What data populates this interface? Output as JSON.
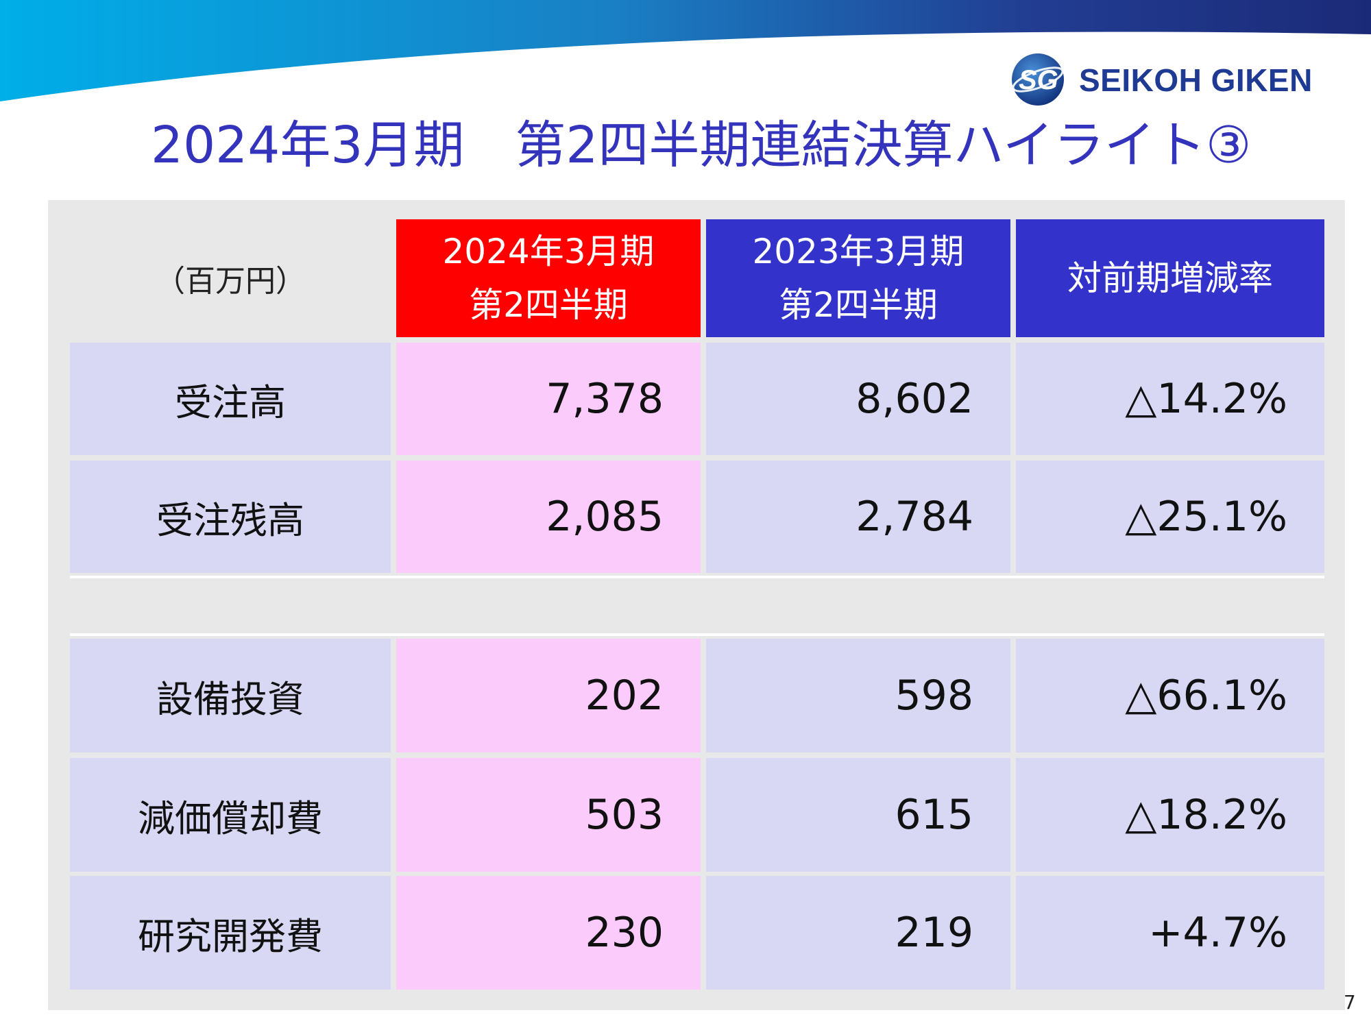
{
  "slide": {
    "title": "2024年3月期　第2四半期連結決算ハイライト③",
    "page_number": "7",
    "colors": {
      "accent_blue": "#3333cc",
      "current_header": "#ff0000",
      "current_cells": "#fbcbfb",
      "other_cells": "#d8d8f4",
      "panel_bg": "#e8e8e8"
    }
  },
  "logo": {
    "text": "SEIKOH GIKEN",
    "mark": "SG"
  },
  "table": {
    "unit_label": "（百万円）",
    "headers": {
      "current": [
        "2024年3月期",
        "第2四半期"
      ],
      "previous": [
        "2023年3月期",
        "第2四半期"
      ],
      "change": "対前期増減率"
    },
    "group1": [
      {
        "label": "受注高",
        "current": "7,378",
        "previous": "8,602",
        "change": "△14.2%"
      },
      {
        "label": "受注残高",
        "current": "2,085",
        "previous": "2,784",
        "change": "△25.1%"
      }
    ],
    "group2": [
      {
        "label": "設備投資",
        "current": "202",
        "previous": "598",
        "change": "△66.1%"
      },
      {
        "label": "減価償却費",
        "current": "503",
        "previous": "615",
        "change": "△18.2%"
      },
      {
        "label": "研究開発費",
        "current": "230",
        "previous": "219",
        "change": "+4.7%"
      }
    ]
  }
}
